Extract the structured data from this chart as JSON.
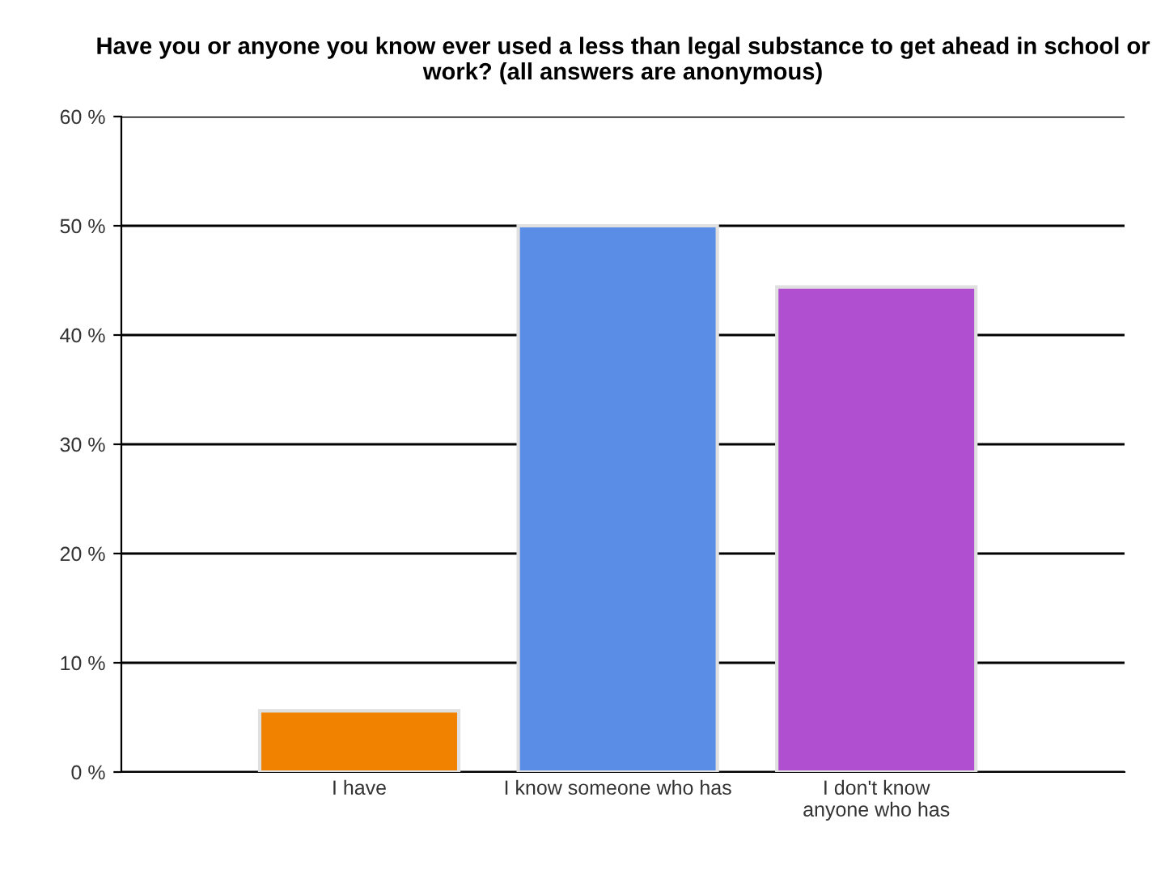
{
  "chart_data": {
    "type": "bar",
    "title": "Have you or anyone you know ever used a less than legal substance to get ahead in school or work? (all answers are anonymous)",
    "categories": [
      "I have",
      "I know someone who has",
      "I don't know\nanyone who has"
    ],
    "values": [
      5.6,
      50,
      44.4
    ],
    "colors": [
      "#f08200",
      "#5a8ee6",
      "#b050d0"
    ],
    "ylim": [
      0,
      60
    ],
    "yticks": [
      {
        "value": 0,
        "label": "0 %"
      },
      {
        "value": 10,
        "label": "10 %"
      },
      {
        "value": 20,
        "label": "20 %"
      },
      {
        "value": 30,
        "label": "30 %"
      },
      {
        "value": 40,
        "label": "40 %"
      },
      {
        "value": 50,
        "label": "50 %"
      },
      {
        "value": 60,
        "label": "60 %"
      }
    ],
    "grid": "y",
    "legend": false
  }
}
